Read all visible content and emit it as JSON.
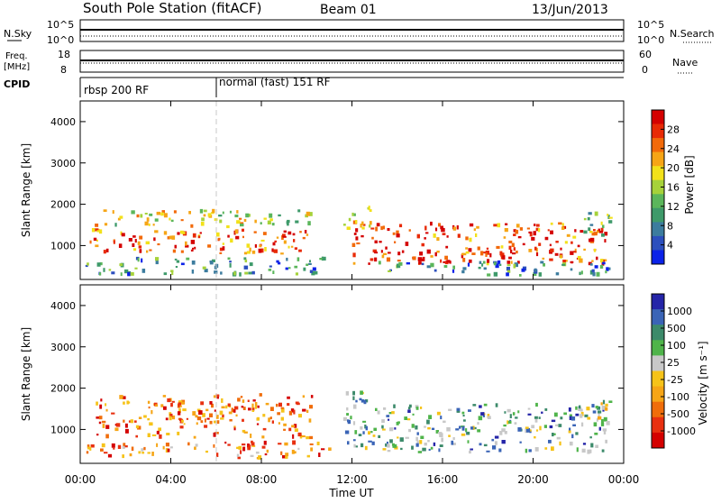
{
  "header": {
    "station": "South Pole Station (fitACF)",
    "beam": "Beam 01",
    "date": "13/Jun/2013"
  },
  "top_panels": {
    "nsky_label": "N.Sky",
    "nsky_ticks": [
      "10^5",
      "10^0"
    ],
    "nsearch_label": "N.Search",
    "nsearch_ticks": [
      "10^5",
      "10^0"
    ],
    "freq_label": "Freq.",
    "freq_unit": "[MHz]",
    "freq_ticks": [
      "18",
      "8"
    ],
    "nave_label": "Nave",
    "nave_ticks": [
      "60",
      "0"
    ],
    "cpid_label": "CPID",
    "cpid_segments": [
      {
        "label": "rbsp 200 RF",
        "start_hour": 0
      },
      {
        "label": "normal (fast) 151 RF",
        "start_hour": 6
      }
    ]
  },
  "x_axis": {
    "label": "Time UT",
    "ticks": [
      "00:00",
      "04:00",
      "08:00",
      "12:00",
      "16:00",
      "20:00",
      "00:00"
    ]
  },
  "chart_data": [
    {
      "type": "heatmap",
      "name": "power",
      "xlabel": "Time UT",
      "ylabel": "Slant Range [km]",
      "xlim": [
        0,
        24
      ],
      "ylim": [
        180,
        4500
      ],
      "yticks": [
        "4000",
        "3000",
        "2000",
        "1000"
      ],
      "colorbar_label": "Power [dB]",
      "colorbar_ticks": [
        "28",
        "24",
        "20",
        "16",
        "12",
        "8",
        "4"
      ],
      "colorbar_colors": [
        "#0b22e8",
        "#2c4fbd",
        "#3c7c9e",
        "#3e9a6a",
        "#5bb65b",
        "#a6d23a",
        "#f2e11a",
        "#f6a516",
        "#f26a0a",
        "#e82a05",
        "#d40000"
      ],
      "regions": [
        {
          "t0": 0.6,
          "t1": 10.2,
          "r0": 1450,
          "r1": 1850,
          "level": 0.55
        },
        {
          "t0": 0.4,
          "t1": 10.0,
          "r0": 800,
          "r1": 1400,
          "level": 0.8
        },
        {
          "t0": 0.2,
          "t1": 11.0,
          "r0": 300,
          "r1": 700,
          "level": 0.3
        },
        {
          "t0": 11.6,
          "t1": 12.8,
          "r0": 1400,
          "r1": 2000,
          "level": 0.5
        },
        {
          "t0": 12.0,
          "t1": 23.2,
          "r0": 550,
          "r1": 1550,
          "level": 0.85
        },
        {
          "t0": 13.0,
          "t1": 23.5,
          "r0": 280,
          "r1": 600,
          "level": 0.25
        },
        {
          "t0": 22.2,
          "t1": 23.4,
          "r0": 1150,
          "r1": 1800,
          "level": 0.4
        }
      ]
    },
    {
      "type": "heatmap",
      "name": "velocity",
      "xlabel": "Time UT",
      "ylabel": "Slant Range [km]",
      "xlim": [
        0,
        24
      ],
      "ylim": [
        180,
        4500
      ],
      "yticks": [
        "4000",
        "3000",
        "2000",
        "1000"
      ],
      "colorbar_label": "Velocity [m s^-1]",
      "colorbar_ticks": [
        "1000",
        "500",
        "100",
        "25",
        "-25",
        "-100",
        "-500",
        "-1000"
      ],
      "colorbar_colors": [
        "#2525a8",
        "#3a64b6",
        "#3c8a6a",
        "#4fb44a",
        "#c8c8c8",
        "#f6c319",
        "#f6a516",
        "#f06d0a",
        "#e83010",
        "#d40000"
      ],
      "regions": [
        {
          "t0": 0.6,
          "t1": 10.2,
          "r0": 800,
          "r1": 1850,
          "level": 0.75
        },
        {
          "t0": 0.2,
          "t1": 11.0,
          "r0": 300,
          "r1": 700,
          "level": 0.7
        },
        {
          "t0": 11.6,
          "t1": 13.2,
          "r0": 500,
          "r1": 1900,
          "level": 0.35
        },
        {
          "t0": 13.2,
          "t1": 23.2,
          "r0": 450,
          "r1": 1600,
          "level": 0.3
        },
        {
          "t0": 22.0,
          "t1": 23.4,
          "r0": 1100,
          "r1": 1700,
          "level": 0.4
        }
      ]
    }
  ]
}
